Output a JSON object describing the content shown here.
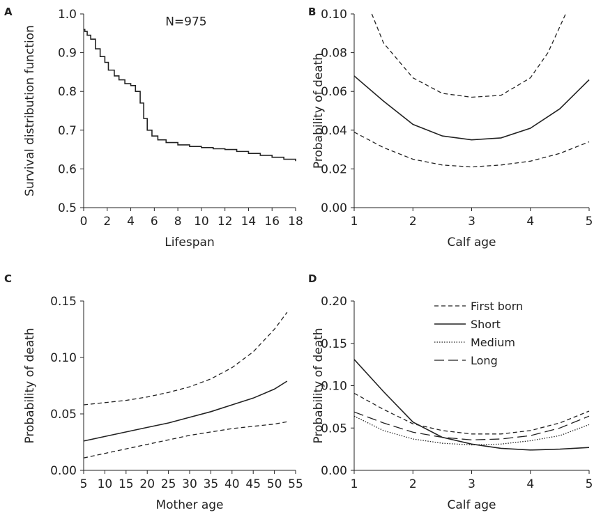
{
  "figure": {
    "panels": [
      "A",
      "B",
      "C",
      "D"
    ]
  },
  "chart_data": [
    {
      "panel": "A",
      "type": "line",
      "title": "",
      "annotation": "N=975",
      "xlabel": "Lifespan",
      "ylabel": "Survival distribution function",
      "xlim": [
        0,
        18
      ],
      "ylim": [
        0.5,
        1.0
      ],
      "xticks": [
        0,
        2,
        4,
        6,
        8,
        10,
        12,
        14,
        16,
        18
      ],
      "yticks": [
        0.5,
        0.6,
        0.7,
        0.8,
        0.9,
        1.0
      ],
      "xtick_labels": [
        "0",
        "2",
        "4",
        "6",
        "8",
        "10",
        "12",
        "14",
        "16",
        "18"
      ],
      "ytick_labels": [
        "0.5",
        "0.6",
        "0.7",
        "0.8",
        "0.9",
        "1.0"
      ],
      "series": [
        {
          "style": "solid",
          "x": [
            0,
            0.1,
            0.3,
            0.6,
            1.0,
            1.4,
            1.8,
            2.1,
            2.6,
            3.0,
            3.5,
            4.0,
            4.4,
            4.8,
            5.1,
            5.4,
            5.8,
            6.3,
            7.0,
            8.0,
            9.0,
            10.0,
            11.0,
            12.0,
            13.0,
            14.0,
            15.0,
            16.0,
            17.0,
            18.0
          ],
          "y": [
            0.96,
            0.955,
            0.945,
            0.935,
            0.91,
            0.89,
            0.875,
            0.855,
            0.84,
            0.83,
            0.82,
            0.815,
            0.8,
            0.77,
            0.73,
            0.7,
            0.685,
            0.675,
            0.668,
            0.662,
            0.658,
            0.655,
            0.652,
            0.65,
            0.645,
            0.64,
            0.635,
            0.63,
            0.625,
            0.62
          ]
        }
      ]
    },
    {
      "panel": "B",
      "type": "line",
      "title": "",
      "xlabel": "Calf age",
      "ylabel": "Probability of death",
      "xlim": [
        1,
        5
      ],
      "ylim": [
        0,
        0.1
      ],
      "xticks": [
        1,
        2,
        3,
        4,
        5
      ],
      "yticks": [
        0,
        0.02,
        0.04,
        0.06,
        0.08,
        0.1
      ],
      "xtick_labels": [
        "1",
        "2",
        "3",
        "4",
        "5"
      ],
      "ytick_labels": [
        "0.00",
        "0.02",
        "0.04",
        "0.06",
        "0.08",
        "0.10"
      ],
      "series": [
        {
          "style": "dashed",
          "x": [
            1.3,
            1.5,
            2.0,
            2.5,
            3.0,
            3.5,
            4.0,
            4.3,
            4.6
          ],
          "y": [
            0.1,
            0.085,
            0.067,
            0.059,
            0.057,
            0.058,
            0.067,
            0.08,
            0.1
          ]
        },
        {
          "style": "solid",
          "x": [
            1.0,
            1.5,
            2.0,
            2.5,
            3.0,
            3.5,
            4.0,
            4.5,
            5.0
          ],
          "y": [
            0.068,
            0.055,
            0.043,
            0.037,
            0.035,
            0.036,
            0.041,
            0.051,
            0.066
          ]
        },
        {
          "style": "dashed",
          "x": [
            1.0,
            1.5,
            2.0,
            2.5,
            3.0,
            3.5,
            4.0,
            4.5,
            5.0
          ],
          "y": [
            0.039,
            0.031,
            0.025,
            0.022,
            0.021,
            0.022,
            0.024,
            0.028,
            0.034
          ]
        }
      ]
    },
    {
      "panel": "C",
      "type": "line",
      "title": "",
      "xlabel": "Mother age",
      "ylabel": "Probability of death",
      "xlim": [
        5,
        55
      ],
      "ylim": [
        0,
        0.15
      ],
      "xticks": [
        5,
        10,
        15,
        20,
        25,
        30,
        35,
        40,
        45,
        50,
        55
      ],
      "yticks": [
        0,
        0.05,
        0.1,
        0.15
      ],
      "xtick_labels": [
        "5",
        "10",
        "15",
        "20",
        "25",
        "30",
        "35",
        "40",
        "45",
        "50",
        "55"
      ],
      "ytick_labels": [
        "0.00",
        "0.05",
        "0.10",
        "0.15"
      ],
      "series": [
        {
          "style": "dashed",
          "x": [
            5,
            10,
            15,
            20,
            25,
            30,
            35,
            40,
            45,
            50,
            53
          ],
          "y": [
            0.058,
            0.06,
            0.062,
            0.065,
            0.069,
            0.074,
            0.081,
            0.091,
            0.105,
            0.125,
            0.14
          ]
        },
        {
          "style": "solid",
          "x": [
            5,
            10,
            15,
            20,
            25,
            30,
            35,
            40,
            45,
            50,
            53
          ],
          "y": [
            0.026,
            0.03,
            0.034,
            0.038,
            0.042,
            0.047,
            0.052,
            0.058,
            0.064,
            0.072,
            0.079
          ]
        },
        {
          "style": "dashed",
          "x": [
            5,
            10,
            15,
            20,
            25,
            30,
            35,
            40,
            45,
            50,
            53
          ],
          "y": [
            0.011,
            0.015,
            0.019,
            0.023,
            0.027,
            0.031,
            0.034,
            0.037,
            0.039,
            0.041,
            0.043
          ]
        }
      ]
    },
    {
      "panel": "D",
      "type": "line",
      "title": "",
      "xlabel": "Calf age",
      "ylabel": "Probability of death",
      "xlim": [
        1,
        5
      ],
      "ylim": [
        0,
        0.2
      ],
      "xticks": [
        1,
        2,
        3,
        4,
        5
      ],
      "yticks": [
        0,
        0.05,
        0.1,
        0.15,
        0.2
      ],
      "xtick_labels": [
        "1",
        "2",
        "3",
        "4",
        "5"
      ],
      "ytick_labels": [
        "0.00",
        "0.05",
        "0.10",
        "0.15",
        "0.20"
      ],
      "legend": "top",
      "series": [
        {
          "name": "First born",
          "style": "dashed",
          "x": [
            1.0,
            1.5,
            2.0,
            2.5,
            3.0,
            3.5,
            4.0,
            4.5,
            5.0
          ],
          "y": [
            0.091,
            0.072,
            0.055,
            0.047,
            0.043,
            0.043,
            0.047,
            0.056,
            0.07
          ]
        },
        {
          "name": "Short",
          "style": "solid",
          "x": [
            1.0,
            1.5,
            2.0,
            2.5,
            3.0,
            3.5,
            4.0,
            4.5,
            5.0
          ],
          "y": [
            0.131,
            0.093,
            0.057,
            0.039,
            0.031,
            0.026,
            0.024,
            0.025,
            0.027
          ]
        },
        {
          "name": "Medium",
          "style": "dotted",
          "x": [
            1.0,
            1.5,
            2.0,
            2.5,
            3.0,
            3.5,
            4.0,
            4.5,
            5.0
          ],
          "y": [
            0.064,
            0.047,
            0.037,
            0.032,
            0.03,
            0.031,
            0.035,
            0.041,
            0.054
          ]
        },
        {
          "name": "Long",
          "style": "longdash",
          "x": [
            1.0,
            1.5,
            2.0,
            2.5,
            3.0,
            3.5,
            4.0,
            4.5,
            5.0
          ],
          "y": [
            0.069,
            0.056,
            0.045,
            0.039,
            0.036,
            0.037,
            0.041,
            0.05,
            0.064
          ]
        }
      ]
    }
  ]
}
